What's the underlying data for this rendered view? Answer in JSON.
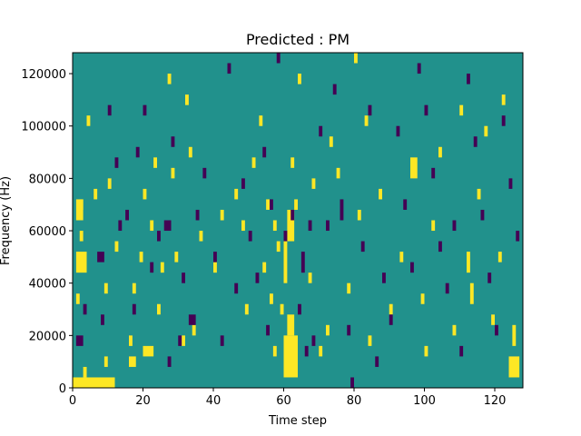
{
  "chart_data": {
    "type": "heatmap",
    "title": "Predicted : PM",
    "xlabel": "Time step",
    "ylabel": "Frequency (Hz)",
    "xlim": [
      0,
      128
    ],
    "ylim": [
      0,
      128000
    ],
    "x_ticks": [
      0,
      20,
      40,
      60,
      80,
      100,
      120
    ],
    "y_ticks": [
      0,
      20000,
      40000,
      60000,
      80000,
      100000,
      120000
    ],
    "grid": false,
    "legend": "none",
    "value_levels": [
      -1,
      0,
      1
    ],
    "colors": {
      "-1": "#440154",
      "0": "#21918c",
      "1": "#fde725"
    },
    "background_value": 0,
    "cells": {
      "1": [
        [
          0,
          0,
          12,
          4000
        ],
        [
          3,
          4000,
          1,
          4000
        ],
        [
          1,
          44000,
          3,
          8000
        ],
        [
          1,
          64000,
          2,
          8000
        ],
        [
          2,
          56000,
          1,
          4000
        ],
        [
          2,
          68000,
          1,
          4000
        ],
        [
          1,
          32000,
          1,
          4000
        ],
        [
          4,
          100000,
          1,
          4000
        ],
        [
          6,
          72000,
          1,
          4000
        ],
        [
          9,
          36000,
          1,
          4000
        ],
        [
          9,
          8000,
          1,
          4000
        ],
        [
          10,
          76000,
          1,
          4000
        ],
        [
          12,
          52000,
          1,
          4000
        ],
        [
          16,
          8000,
          2,
          4000
        ],
        [
          16,
          16000,
          1,
          4000
        ],
        [
          17,
          36000,
          1,
          4000
        ],
        [
          19,
          48000,
          1,
          4000
        ],
        [
          20,
          12000,
          3,
          4000
        ],
        [
          20,
          72000,
          1,
          4000
        ],
        [
          22,
          60000,
          1,
          4000
        ],
        [
          23,
          84000,
          1,
          4000
        ],
        [
          24,
          28000,
          1,
          4000
        ],
        [
          25,
          44000,
          1,
          4000
        ],
        [
          27,
          116000,
          1,
          4000
        ],
        [
          28,
          80000,
          1,
          4000
        ],
        [
          29,
          48000,
          1,
          4000
        ],
        [
          31,
          16000,
          1,
          4000
        ],
        [
          32,
          108000,
          1,
          4000
        ],
        [
          33,
          88000,
          1,
          4000
        ],
        [
          34,
          20000,
          1,
          4000
        ],
        [
          36,
          56000,
          1,
          4000
        ],
        [
          40,
          44000,
          1,
          4000
        ],
        [
          42,
          64000,
          1,
          4000
        ],
        [
          46,
          72000,
          1,
          4000
        ],
        [
          48,
          60000,
          1,
          4000
        ],
        [
          49,
          28000,
          1,
          4000
        ],
        [
          51,
          84000,
          1,
          4000
        ],
        [
          53,
          100000,
          1,
          4000
        ],
        [
          54,
          44000,
          1,
          4000
        ],
        [
          55,
          68000,
          1,
          4000
        ],
        [
          56,
          32000,
          1,
          4000
        ],
        [
          57,
          12000,
          1,
          4000
        ],
        [
          57,
          60000,
          1,
          4000
        ],
        [
          58,
          52000,
          1,
          4000
        ],
        [
          59,
          28000,
          1,
          4000
        ],
        [
          60,
          4000,
          4,
          16000
        ],
        [
          61,
          20000,
          2,
          8000
        ],
        [
          60,
          40000,
          1,
          16000
        ],
        [
          61,
          56000,
          2,
          12000
        ],
        [
          62,
          84000,
          1,
          4000
        ],
        [
          63,
          68000,
          1,
          4000
        ],
        [
          64,
          116000,
          1,
          4000
        ],
        [
          67,
          40000,
          1,
          4000
        ],
        [
          68,
          76000,
          1,
          4000
        ],
        [
          70,
          12000,
          1,
          4000
        ],
        [
          72,
          20000,
          1,
          4000
        ],
        [
          73,
          92000,
          1,
          4000
        ],
        [
          75,
          80000,
          1,
          4000
        ],
        [
          78,
          36000,
          1,
          4000
        ],
        [
          80,
          124000,
          1,
          4000
        ],
        [
          81,
          64000,
          1,
          4000
        ],
        [
          83,
          100000,
          1,
          4000
        ],
        [
          84,
          16000,
          1,
          4000
        ],
        [
          87,
          72000,
          1,
          4000
        ],
        [
          90,
          28000,
          1,
          4000
        ],
        [
          93,
          48000,
          1,
          4000
        ],
        [
          96,
          80000,
          2,
          8000
        ],
        [
          99,
          32000,
          1,
          4000
        ],
        [
          100,
          12000,
          1,
          4000
        ],
        [
          102,
          60000,
          1,
          4000
        ],
        [
          104,
          88000,
          1,
          4000
        ],
        [
          108,
          20000,
          1,
          4000
        ],
        [
          110,
          104000,
          1,
          4000
        ],
        [
          112,
          44000,
          1,
          8000
        ],
        [
          113,
          32000,
          1,
          8000
        ],
        [
          115,
          72000,
          1,
          4000
        ],
        [
          117,
          96000,
          1,
          4000
        ],
        [
          119,
          24000,
          1,
          4000
        ],
        [
          121,
          48000,
          1,
          4000
        ],
        [
          122,
          108000,
          1,
          4000
        ],
        [
          124,
          4000,
          3,
          8000
        ],
        [
          125,
          16000,
          1,
          8000
        ]
      ],
      "-1": [
        [
          1,
          16000,
          2,
          4000
        ],
        [
          3,
          28000,
          1,
          4000
        ],
        [
          7,
          48000,
          2,
          4000
        ],
        [
          8,
          24000,
          1,
          4000
        ],
        [
          10,
          104000,
          1,
          4000
        ],
        [
          12,
          84000,
          1,
          4000
        ],
        [
          13,
          60000,
          1,
          4000
        ],
        [
          15,
          64000,
          1,
          4000
        ],
        [
          17,
          28000,
          1,
          4000
        ],
        [
          18,
          88000,
          1,
          4000
        ],
        [
          20,
          104000,
          1,
          4000
        ],
        [
          22,
          44000,
          1,
          4000
        ],
        [
          24,
          56000,
          1,
          4000
        ],
        [
          26,
          60000,
          2,
          4000
        ],
        [
          27,
          8000,
          1,
          4000
        ],
        [
          28,
          92000,
          1,
          4000
        ],
        [
          30,
          16000,
          1,
          4000
        ],
        [
          31,
          40000,
          1,
          4000
        ],
        [
          33,
          24000,
          2,
          4000
        ],
        [
          35,
          64000,
          1,
          4000
        ],
        [
          37,
          80000,
          1,
          4000
        ],
        [
          40,
          48000,
          1,
          4000
        ],
        [
          42,
          16000,
          1,
          4000
        ],
        [
          44,
          120000,
          1,
          4000
        ],
        [
          46,
          36000,
          1,
          4000
        ],
        [
          48,
          76000,
          1,
          4000
        ],
        [
          50,
          56000,
          1,
          4000
        ],
        [
          52,
          40000,
          1,
          4000
        ],
        [
          54,
          88000,
          1,
          4000
        ],
        [
          55,
          20000,
          1,
          4000
        ],
        [
          56,
          68000,
          1,
          4000
        ],
        [
          58,
          124000,
          1,
          4000
        ],
        [
          60,
          56000,
          1,
          4000
        ],
        [
          62,
          64000,
          1,
          4000
        ],
        [
          64,
          28000,
          1,
          4000
        ],
        [
          65,
          44000,
          1,
          8000
        ],
        [
          66,
          12000,
          1,
          4000
        ],
        [
          67,
          60000,
          1,
          4000
        ],
        [
          68,
          16000,
          1,
          4000
        ],
        [
          70,
          96000,
          1,
          4000
        ],
        [
          72,
          60000,
          1,
          4000
        ],
        [
          74,
          112000,
          1,
          4000
        ],
        [
          76,
          64000,
          1,
          8000
        ],
        [
          78,
          20000,
          1,
          4000
        ],
        [
          79,
          0,
          1,
          4000
        ],
        [
          82,
          52000,
          1,
          4000
        ],
        [
          84,
          104000,
          1,
          4000
        ],
        [
          86,
          8000,
          1,
          4000
        ],
        [
          88,
          40000,
          1,
          4000
        ],
        [
          90,
          24000,
          1,
          4000
        ],
        [
          92,
          96000,
          1,
          4000
        ],
        [
          94,
          68000,
          1,
          4000
        ],
        [
          96,
          44000,
          1,
          4000
        ],
        [
          98,
          120000,
          1,
          4000
        ],
        [
          100,
          104000,
          1,
          4000
        ],
        [
          102,
          80000,
          1,
          4000
        ],
        [
          104,
          52000,
          1,
          4000
        ],
        [
          106,
          36000,
          1,
          4000
        ],
        [
          108,
          60000,
          1,
          4000
        ],
        [
          110,
          12000,
          1,
          4000
        ],
        [
          112,
          116000,
          1,
          4000
        ],
        [
          114,
          92000,
          1,
          4000
        ],
        [
          116,
          64000,
          1,
          4000
        ],
        [
          118,
          40000,
          1,
          4000
        ],
        [
          120,
          20000,
          1,
          4000
        ],
        [
          122,
          100000,
          1,
          4000
        ],
        [
          124,
          76000,
          1,
          4000
        ],
        [
          126,
          56000,
          1,
          4000
        ]
      ]
    }
  }
}
